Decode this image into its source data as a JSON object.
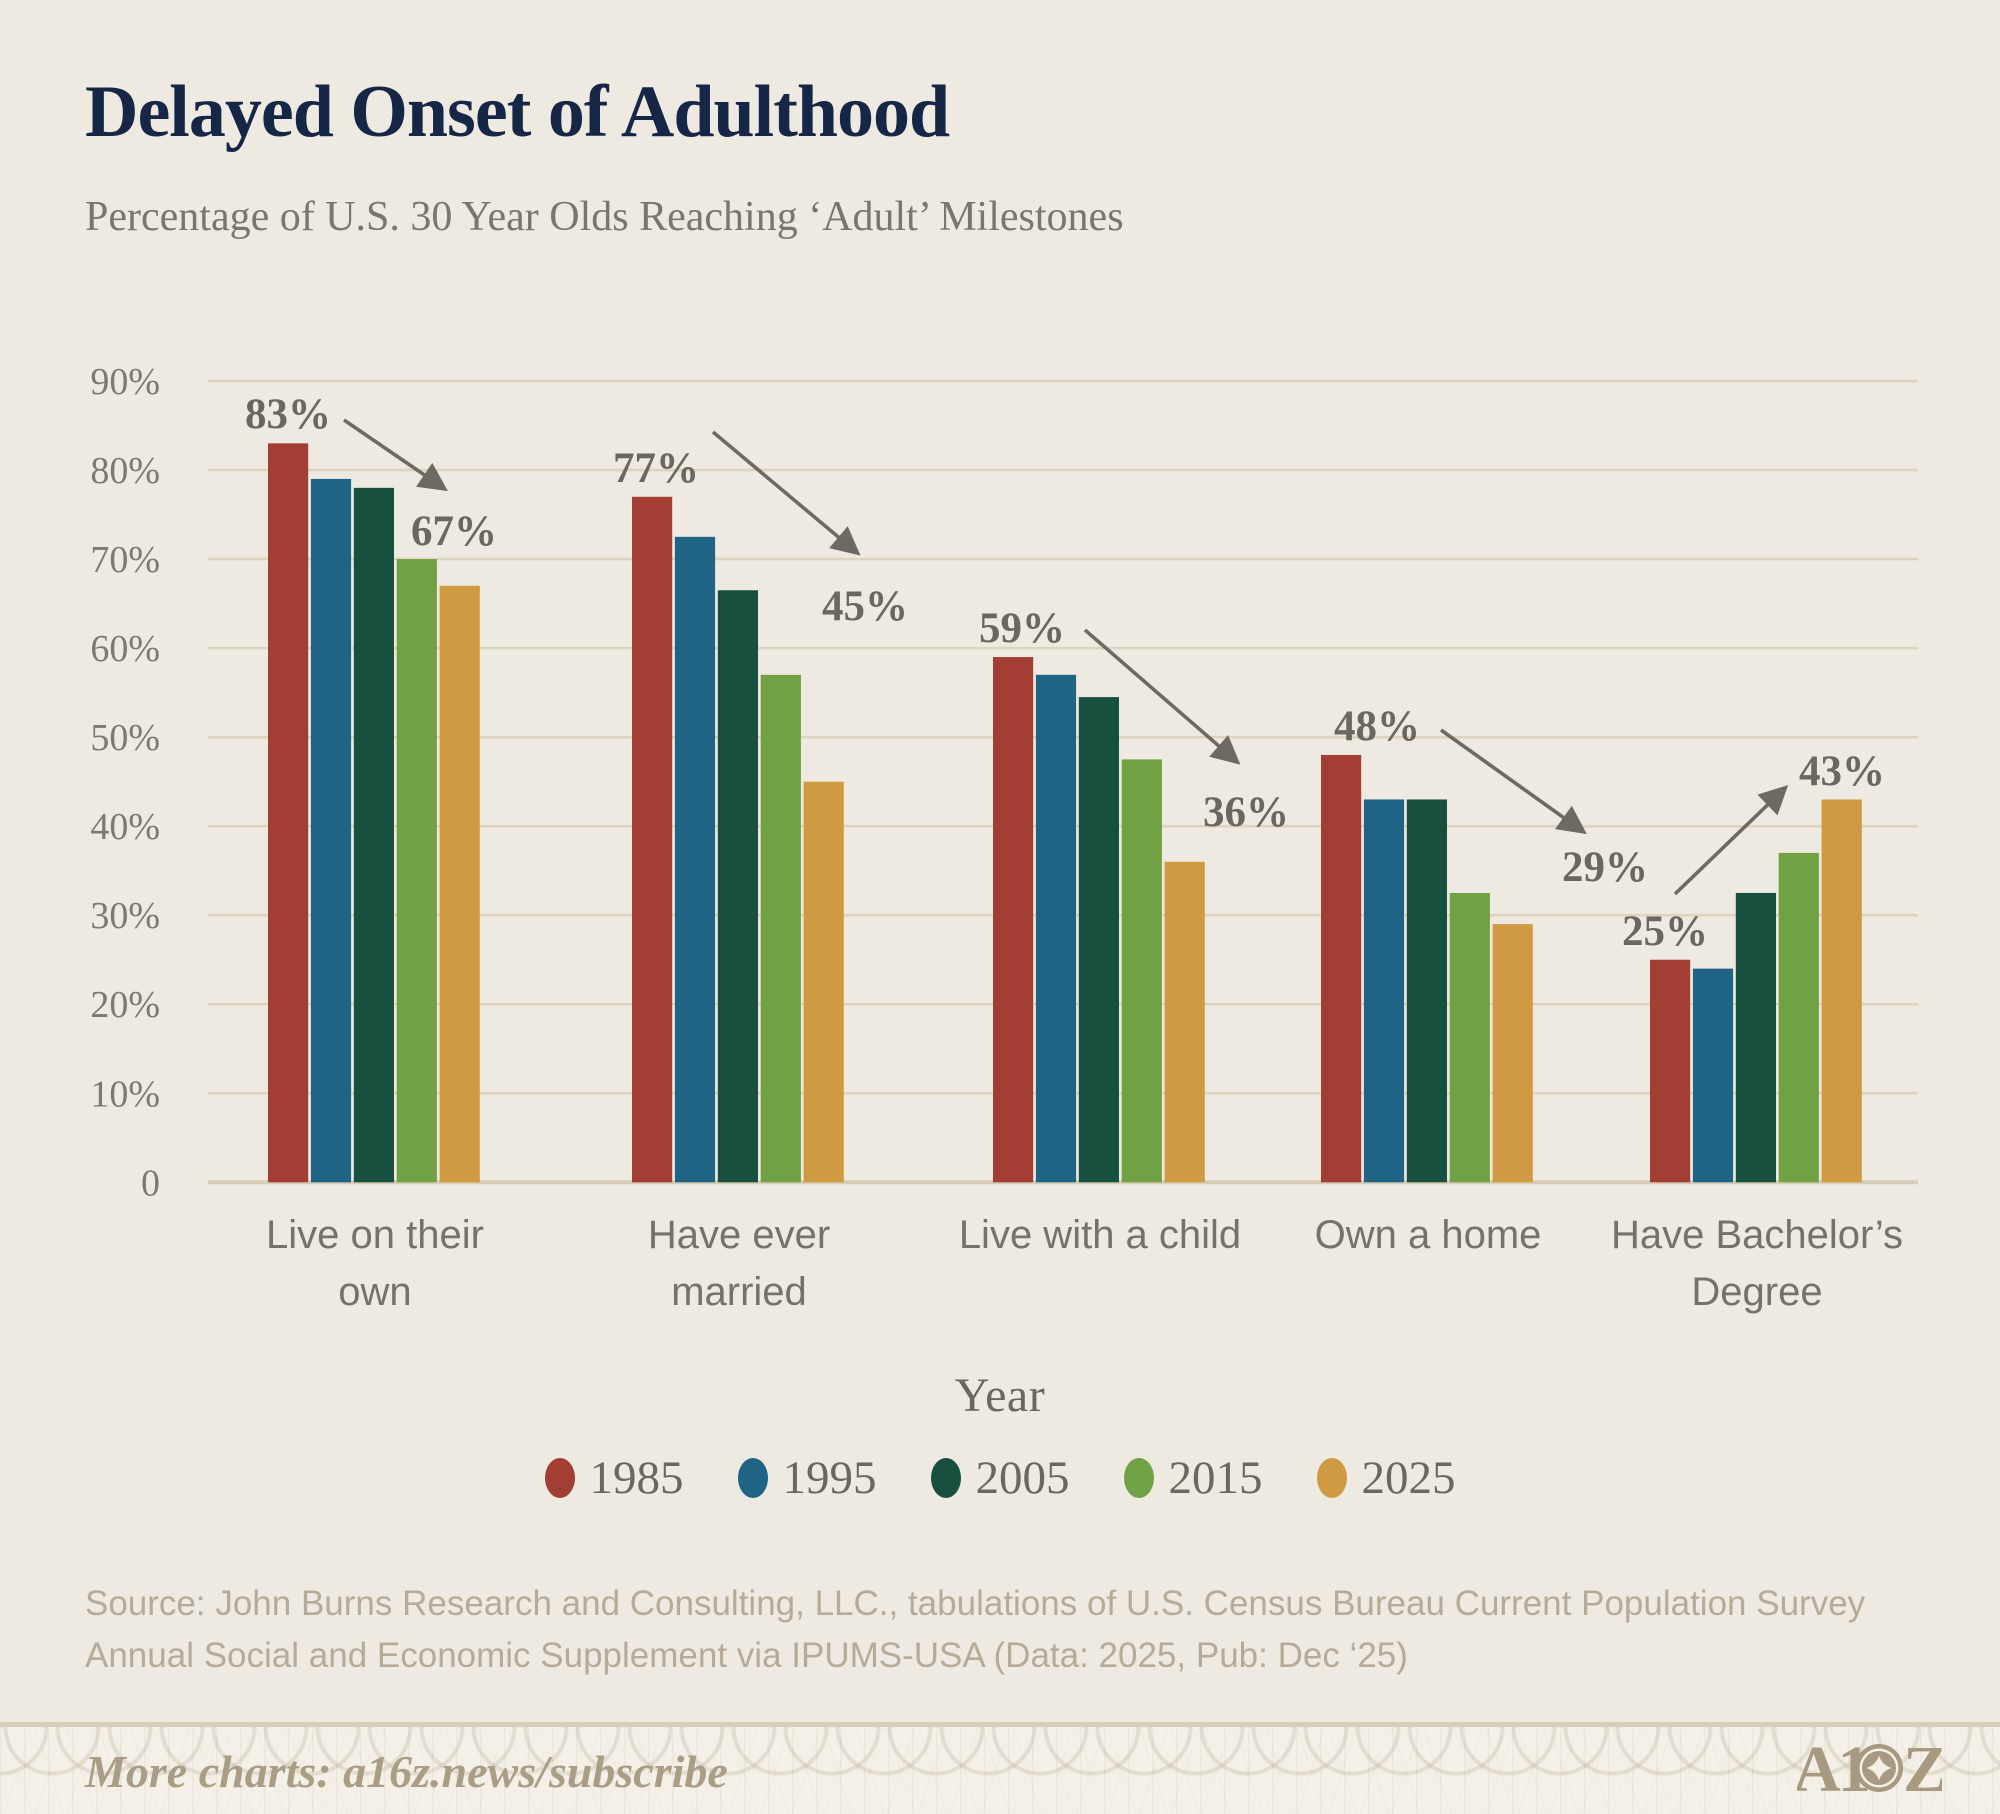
{
  "header": {
    "title": "Delayed Onset of Adulthood",
    "subtitle": "Percentage of U.S. 30 Year Olds Reaching ‘Adult’ Milestones"
  },
  "chart_data": {
    "type": "bar",
    "title": "Delayed Onset of Adulthood",
    "subtitle": "Percentage of U.S. 30 Year Olds Reaching ‘Adult’ Milestones",
    "categories": [
      "Live on their own",
      "Have ever married",
      "Live with a child",
      "Own a home",
      "Have Bachelor’s Degree"
    ],
    "category_label_lines": [
      [
        "Live on their",
        "own"
      ],
      [
        "Have ever",
        "married"
      ],
      [
        "Live with a child"
      ],
      [
        "Own a home"
      ],
      [
        "Have Bachelor’s",
        "Degree"
      ]
    ],
    "series": [
      {
        "name": "1985",
        "color": "#a23e33",
        "values": [
          83,
          77,
          59,
          48,
          25
        ]
      },
      {
        "name": "1995",
        "color": "#1f6485",
        "values": [
          79,
          72.5,
          57,
          43,
          24
        ]
      },
      {
        "name": "2005",
        "color": "#17503f",
        "values": [
          78,
          66.5,
          54.5,
          43,
          32.5
        ]
      },
      {
        "name": "2015",
        "color": "#70a144",
        "values": [
          70,
          57,
          47.5,
          32.5,
          37
        ]
      },
      {
        "name": "2025",
        "color": "#cf9a42",
        "values": [
          67,
          45,
          36,
          29,
          43
        ]
      }
    ],
    "group_annotations": [
      {
        "start_label": "83%",
        "end_label": "67%",
        "trend": "down"
      },
      {
        "start_label": "77%",
        "end_label": "45%",
        "trend": "down"
      },
      {
        "start_label": "59%",
        "end_label": "36%",
        "trend": "down"
      },
      {
        "start_label": "48%",
        "end_label": "29%",
        "trend": "down"
      },
      {
        "start_label": "25%",
        "end_label": "43%",
        "trend": "up"
      }
    ],
    "xlabel": "Year",
    "ylabel": "",
    "ylim": [
      0,
      90
    ],
    "ytick_labels": [
      "90%",
      "80%",
      "70%",
      "60%",
      "50%",
      "40%",
      "30%",
      "20%",
      "10%",
      "0"
    ],
    "grid": true,
    "legend_position": "bottom"
  },
  "legend": {
    "title": "Year"
  },
  "source": {
    "line1": "Source: John Burns Research and Consulting, LLC., tabulations of U.S. Census Bureau Current Population Survey",
    "line2": "Annual Social and Economic Supplement via IPUMS-USA (Data: 2025, Pub: Dec ‘25)"
  },
  "footer": {
    "text": "More charts: a16z.news/subscribe",
    "logo": "A16Z"
  },
  "colors": {
    "background": "#efeae1",
    "grid": "#ddd4bf",
    "axis": "#d6cdb7",
    "title": "#152647",
    "subtitle": "#7b766c",
    "tick_label": "#7e7970",
    "category_label": "#76726b",
    "data_label": "#6b6760",
    "arrow": "#6e6a62",
    "source_text": "#b6ab99",
    "footer_text": "#a99d86",
    "logo": "#a79a81"
  }
}
